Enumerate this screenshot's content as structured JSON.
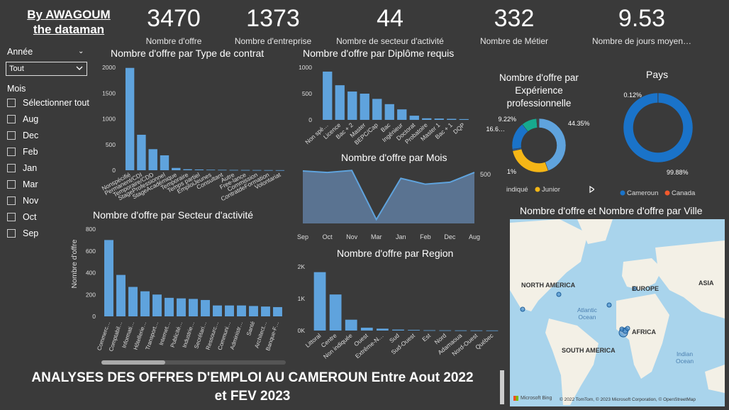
{
  "brand": {
    "line1": "By AWAGOUM",
    "line2": "the dataman"
  },
  "kpis": [
    {
      "value": "3470",
      "label": "Nombre d'offre"
    },
    {
      "value": "1373",
      "label": "Nombre d'entreprise"
    },
    {
      "value": "44",
      "label": "Nombre de secteur d'activité"
    },
    {
      "value": "332",
      "label": "Nombre de Métier"
    },
    {
      "value": "9.53",
      "label": "Nombre de jours moyen…"
    }
  ],
  "slicers": {
    "annee_title": "Année",
    "annee_value": "Tout",
    "mois_title": "Mois",
    "mois_items": [
      "Sélectionner tout",
      "Aug",
      "Dec",
      "Feb",
      "Jan",
      "Mar",
      "Nov",
      "Oct",
      "Sep"
    ]
  },
  "colors": {
    "bar": "#5fa3dd",
    "area": "#5a7391",
    "donut_blue": "#1a73c9",
    "donut_orange": "#f2592c",
    "amber": "#f5b616",
    "teal": "#17a98e"
  },
  "footer": {
    "line1": "ANALYSES DES OFFRES D'EMPLOI AU CAMEROUN Entre Aout 2022",
    "line2": "et FEV 2023"
  },
  "chart_data": [
    {
      "type": "bar",
      "title": "Nombre d'offre par Type de contrat",
      "categories": [
        "Nonspécifié",
        "Permanent/CDI",
        "Temporaire/CDD",
        "StageProfessionnel",
        "StageAcadémique",
        "Temporaire",
        "Temps partiel",
        "EmploiJeunes",
        "Consultant",
        "Autre",
        "Free-lance",
        "Commission",
        "ContratdeFormation",
        "Volontariat"
      ],
      "values": [
        1990,
        690,
        410,
        290,
        45,
        20,
        15,
        10,
        8,
        6,
        5,
        4,
        3,
        2
      ],
      "yticks": [
        "0",
        "500",
        "1000",
        "1500",
        "2000"
      ],
      "ylim": [
        0,
        2000
      ]
    },
    {
      "type": "bar",
      "title": "Nombre d'offre par Diplôme requis",
      "categories": [
        "Non spé…",
        "Licence",
        "Bac + 2",
        "Master",
        "BEPC/Cap",
        "Bac",
        "Ingénieur",
        "Doctorat",
        "Probatoire",
        "Master 1",
        "Bac + 1",
        "DQP"
      ],
      "values": [
        920,
        660,
        540,
        500,
        400,
        300,
        200,
        80,
        30,
        25,
        20,
        15
      ],
      "yticks": [
        "0",
        "500",
        "1000"
      ],
      "ylim": [
        0,
        1000
      ]
    },
    {
      "type": "area",
      "title": "Nombre d'offre par Mois",
      "categories": [
        "Sep",
        "Oct",
        "Nov",
        "Mar",
        "Jan",
        "Feb",
        "Dec",
        "Aug"
      ],
      "values": [
        535,
        520,
        540,
        40,
        460,
        400,
        420,
        520
      ],
      "yticks": [
        "500"
      ],
      "ylim": [
        0,
        600
      ]
    },
    {
      "type": "pie",
      "title": "Nombre d'offre par Expérience professionnelle",
      "slices": [
        {
          "label": "44.35%",
          "value": 44.35,
          "color": "#5fa3dd"
        },
        {
          "label": "",
          "value": 27.4,
          "color": "#f5b616"
        },
        {
          "label": "1%",
          "value": 1,
          "color": "#2b5f9e"
        },
        {
          "label": "16.6…",
          "value": 16.6,
          "color": "#1a73c9"
        },
        {
          "label": "9.22%",
          "value": 9.22,
          "color": "#17a98e"
        },
        {
          "label": "",
          "value": 1.43,
          "color": "#444444"
        }
      ],
      "legend": [
        "indiqué",
        "Junior"
      ]
    },
    {
      "type": "pie",
      "title": "Pays",
      "slices": [
        {
          "label": "99.88%",
          "name": "Cameroun",
          "value": 99.88,
          "color": "#1a73c9"
        },
        {
          "label": "0.12%",
          "name": "Canada",
          "value": 0.12,
          "color": "#f2592c"
        }
      ]
    },
    {
      "type": "bar",
      "title": "Nombre d'offre par Secteur d'activité",
      "ylabel": "Nombre d'offre",
      "categories": [
        "Commerc…",
        "Comptabil…",
        "Informati…",
        "Hôtellerie…",
        "Transport…",
        "Internet…",
        "Publicité…",
        "Industrie…",
        "Secrétari…",
        "Ressourc…",
        "Communi…",
        "Administr…",
        "Santé",
        "Architect…",
        "Banque-F…"
      ],
      "values": [
        700,
        380,
        270,
        230,
        200,
        170,
        165,
        160,
        150,
        100,
        100,
        100,
        95,
        90,
        85
      ],
      "yticks": [
        "0",
        "200",
        "400",
        "600",
        "800"
      ],
      "ylim": [
        0,
        800
      ]
    },
    {
      "type": "bar",
      "title": "Nombre d'offre par Region",
      "categories": [
        "Littoral",
        "Centre",
        "Non indiquée",
        "Ouest",
        "Extrême-N…",
        "Sud",
        "Sud-Ouest",
        "Est",
        "Nord",
        "Adamaoua",
        "Nord-Ouest",
        "Québec"
      ],
      "values": [
        1830,
        1130,
        340,
        90,
        60,
        30,
        20,
        10,
        8,
        6,
        5,
        4
      ],
      "yticks": [
        "0K",
        "1K",
        "2K"
      ],
      "ylim": [
        0,
        2000
      ]
    }
  ],
  "map": {
    "title": "Nombre d'offre et Nombre d'offre par Ville",
    "labels": {
      "na": "NORTH AMERICA",
      "eu": "EUROPE",
      "as": "ASIA",
      "af": "AFRICA",
      "sa": "SOUTH AMERICA",
      "ao": "Atlantic\nOcean",
      "io": "Indian\nOcean"
    },
    "attribution": "© 2022 TomTom, © 2023 Microsoft Corporation, © OpenStreetMap",
    "bing": "Microsoft Bing"
  }
}
